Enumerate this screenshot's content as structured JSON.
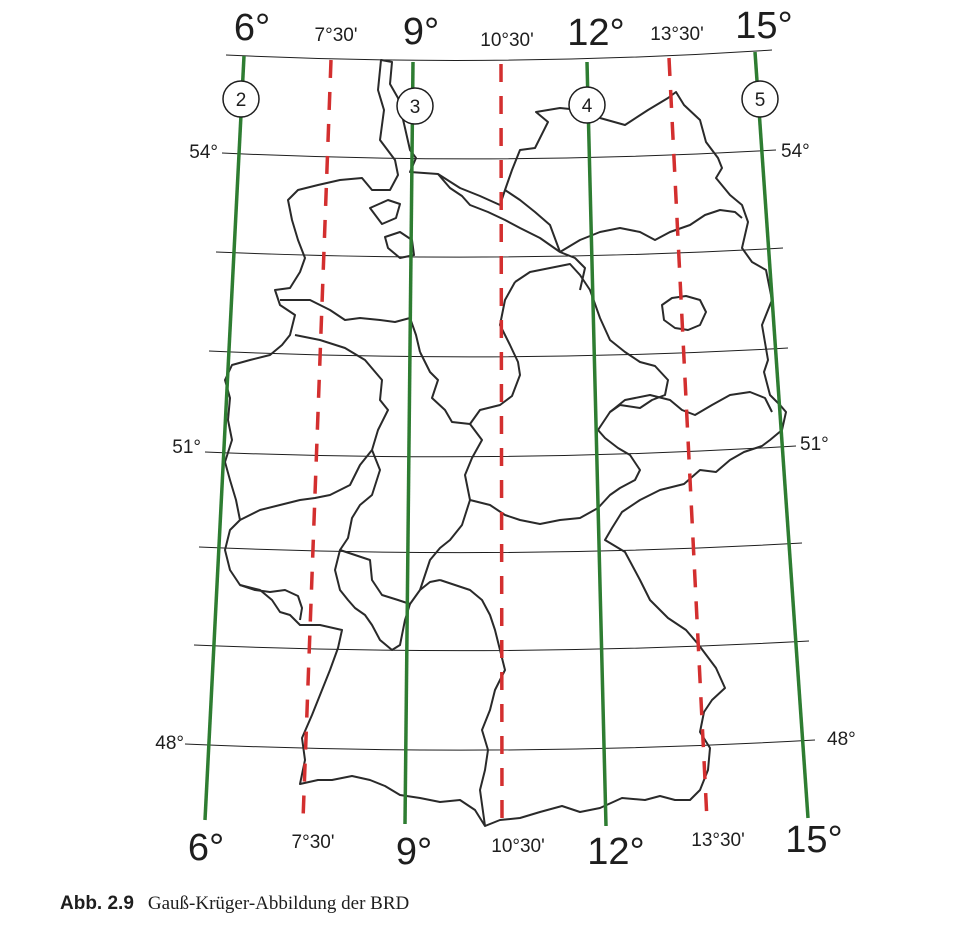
{
  "figure": {
    "caption_number": "Abb. 2.9",
    "caption_text": "Gauß-Krüger-Abbildung der BRD"
  },
  "colors": {
    "main_meridian": "#2e7d32",
    "mid_meridian": "#d32f2f",
    "graticule": "#1e1e1e",
    "borders": "#2a2a2a"
  },
  "map": {
    "main_meridians": [
      {
        "deg": 6,
        "top_label": "6°",
        "bottom_label": "6°",
        "zone": "2"
      },
      {
        "deg": 9,
        "top_label": "9°",
        "bottom_label": "9°",
        "zone": "3"
      },
      {
        "deg": 12,
        "top_label": "12°",
        "bottom_label": "12°",
        "zone": "4"
      },
      {
        "deg": 15,
        "top_label": "15°",
        "bottom_label": "15°",
        "zone": "5"
      }
    ],
    "intermediate_meridians": [
      {
        "deg": 7.5,
        "top_label": "7°30'",
        "bottom_label": "7°30'"
      },
      {
        "deg": 10.5,
        "top_label": "10°30'",
        "bottom_label": "10°30'"
      },
      {
        "deg": 13.5,
        "top_label": "13°30'",
        "bottom_label": "13°30'"
      }
    ],
    "latitude_labels": [
      {
        "deg": 54,
        "left": "54°",
        "right": "54°"
      },
      {
        "deg": 51,
        "left": "51°",
        "right": "51°"
      },
      {
        "deg": 48,
        "left": "48°",
        "right": "48°"
      }
    ]
  }
}
